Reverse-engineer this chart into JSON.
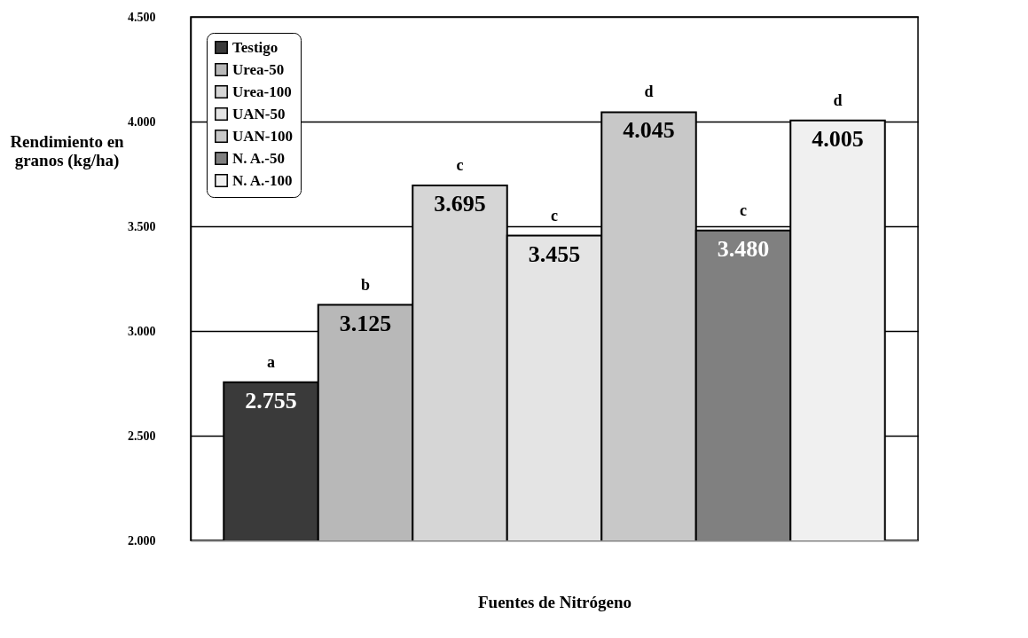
{
  "chart_data": {
    "type": "bar",
    "xlabel": "Fuentes de Nitrógeno",
    "ylabel": "Rendimiento en granos (kg/ha)",
    "categories": [
      null
    ],
    "series": [
      {
        "name": "Testigo",
        "color": "#3a3a3a",
        "values": [
          2755
        ],
        "value_labels": [
          "2.755"
        ]
      },
      {
        "name": "Urea-50",
        "color": "#b8b8b8",
        "values": [
          3125
        ],
        "value_labels": [
          "3.125"
        ]
      },
      {
        "name": "Urea-100",
        "color": "#d6d6d6",
        "values": [
          3695
        ],
        "value_labels": [
          "3.695"
        ]
      },
      {
        "name": "UAN-50",
        "color": "#e4e4e4",
        "values": [
          3455
        ],
        "value_labels": [
          "3.455"
        ]
      },
      {
        "name": "UAN-100",
        "color": "#c8c8c8",
        "values": [
          4045
        ],
        "value_labels": [
          "4.045"
        ]
      },
      {
        "name": "N. A.-50",
        "color": "#808080",
        "values": [
          3480
        ],
        "value_labels": [
          "3.480"
        ]
      },
      {
        "name": "N. A.-100",
        "color": "#f0f0f0",
        "values": [
          4005
        ],
        "value_labels": [
          "4.005"
        ]
      }
    ],
    "annotations": [
      {
        "text": "a",
        "y": 2755
      },
      {
        "text": "b",
        "y": 3125
      },
      {
        "text": "c",
        "y": 3695
      },
      {
        "text": "c",
        "y": 3455
      },
      {
        "text": "d",
        "y": 4045
      },
      {
        "text": "c",
        "y": 3480
      },
      {
        "text": "d",
        "y": 4005
      }
    ],
    "ylim": [
      2000,
      4500
    ],
    "yticks": [
      {
        "value": 2000,
        "label": "2.000"
      },
      {
        "value": 2500,
        "label": "2.500"
      },
      {
        "value": 3000,
        "label": "3.000"
      },
      {
        "value": 3500,
        "label": "3.500"
      },
      {
        "value": 4000,
        "label": "4.000"
      },
      {
        "value": 4500,
        "label": "4.500"
      }
    ],
    "grid": "y",
    "legend": "top left",
    "tick_labels": "y"
  }
}
